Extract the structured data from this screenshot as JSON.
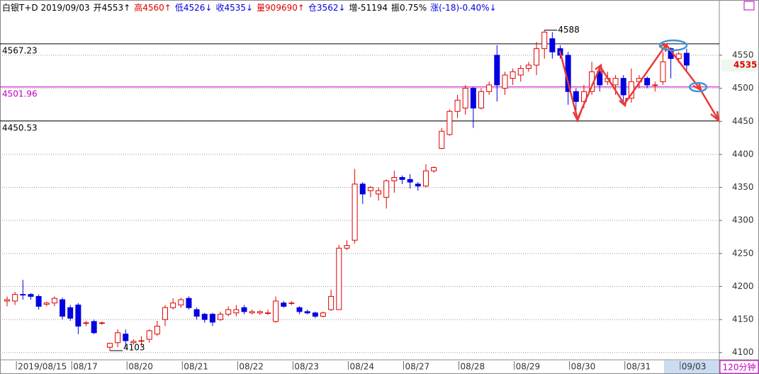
{
  "chart_data": {
    "type": "candlestick",
    "header": [
      {
        "text": "白银T+D 2019/09/03",
        "color": "#000000"
      },
      {
        "text": "开4553↑",
        "color": "#000000"
      },
      {
        "text": "高4560↑",
        "color": "#e00000"
      },
      {
        "text": "低4526↓",
        "color": "#0000e0"
      },
      {
        "text": "收4535↓",
        "color": "#0000e0"
      },
      {
        "text": "量909690↑",
        "color": "#e00000"
      },
      {
        "text": "仓3562↓",
        "color": "#0000e0"
      },
      {
        "text": "增-51194",
        "color": "#000000"
      },
      {
        "text": "振0.75%",
        "color": "#000000"
      },
      {
        "text": "涨(-18)-0.40%↓",
        "color": "#0000e0"
      }
    ],
    "period": "120分钟",
    "categories": [
      null,
      "2019/08/15",
      null,
      null,
      null,
      null,
      null,
      null,
      "08/17",
      null,
      null,
      null,
      null,
      null,
      null,
      "08/20",
      null,
      null,
      null,
      null,
      null,
      null,
      "08/21",
      null,
      null,
      null,
      null,
      null,
      null,
      "08/22",
      null,
      null,
      null,
      null,
      null,
      null,
      "08/23",
      null,
      null,
      null,
      null,
      null,
      null,
      "08/24",
      null,
      null,
      null,
      null,
      null,
      null,
      "08/27",
      null,
      null,
      null,
      null,
      null,
      null,
      "08/28",
      null,
      null,
      null,
      null,
      null,
      null,
      "08/29",
      null,
      null,
      null,
      null,
      null,
      null,
      "08/30",
      null,
      null,
      null,
      null,
      null,
      null,
      "08/31",
      null,
      null,
      null,
      null,
      null,
      null,
      "09/03",
      null
    ],
    "open": [
      4178,
      4178,
      4188,
      4188,
      4185,
      4173,
      4175,
      4180,
      4168,
      4172,
      4145,
      4147,
      4145,
      4108,
      4115,
      4128,
      4115,
      4118,
      4120,
      4128,
      4150,
      4168,
      4172,
      4182,
      4165,
      4158,
      4158,
      4150,
      4158,
      4160,
      4168,
      4160,
      4160,
      4160,
      4147,
      4175,
      4175,
      4168,
      4162,
      4160,
      4155,
      4165,
      4165,
      4258,
      4270,
      4355,
      4345,
      4340,
      4335,
      4360,
      4365,
      4362,
      4355,
      4352,
      4375,
      4409,
      4430,
      4465,
      4470,
      4500,
      4470,
      4495,
      4550,
      4500,
      4515,
      4520,
      4530,
      4535,
      4560,
      4575,
      4560,
      4550,
      4495,
      4480,
      4495,
      4525,
      4510,
      4505,
      4515,
      4485,
      4510,
      4515,
      4505,
      4510,
      4560,
      4545,
      4553
    ],
    "high": [
      4185,
      4192,
      4210,
      4190,
      4188,
      4177,
      4185,
      4183,
      4172,
      4175,
      4148,
      4150,
      4147,
      4115,
      4135,
      4135,
      4120,
      4125,
      4135,
      4148,
      4172,
      4182,
      4183,
      4185,
      4168,
      4160,
      4160,
      4162,
      4170,
      4172,
      4172,
      4165,
      4164,
      4165,
      4185,
      4178,
      4178,
      4170,
      4165,
      4162,
      4162,
      4195,
      4263,
      4270,
      4378,
      4358,
      4352,
      4350,
      4362,
      4375,
      4368,
      4370,
      4358,
      4385,
      4382,
      4440,
      4468,
      4490,
      4505,
      4502,
      4500,
      4510,
      4565,
      4525,
      4530,
      4535,
      4540,
      4570,
      4588,
      4585,
      4565,
      4555,
      4500,
      4505,
      4540,
      4535,
      4525,
      4520,
      4520,
      4530,
      4520,
      4518,
      4510,
      4555,
      4562,
      4555,
      4560
    ],
    "low": [
      4170,
      4172,
      4180,
      4180,
      4165,
      4170,
      4170,
      4150,
      4148,
      4128,
      4140,
      4128,
      4142,
      4103,
      4108,
      4108,
      4112,
      4110,
      4115,
      4125,
      4140,
      4165,
      4168,
      4165,
      4150,
      4145,
      4140,
      4148,
      4155,
      4155,
      4158,
      4158,
      4157,
      4157,
      4145,
      4168,
      4172,
      4158,
      4158,
      4152,
      4153,
      4163,
      4165,
      4255,
      4265,
      4325,
      4335,
      4330,
      4318,
      4342,
      4355,
      4348,
      4345,
      4350,
      4372,
      4408,
      4428,
      4455,
      4460,
      4440,
      4468,
      4490,
      4480,
      4490,
      4505,
      4510,
      4525,
      4520,
      4545,
      4545,
      4545,
      4475,
      4455,
      4470,
      4490,
      4495,
      4505,
      4490,
      4480,
      4478,
      4500,
      4500,
      4495,
      4505,
      4515,
      4538,
      4526
    ],
    "close": [
      4180,
      4188,
      4187,
      4185,
      4170,
      4175,
      4182,
      4155,
      4152,
      4140,
      4145,
      4130,
      4145,
      4114,
      4130,
      4118,
      4117,
      4118,
      4133,
      4140,
      4168,
      4175,
      4180,
      4168,
      4155,
      4150,
      4146,
      4158,
      4165,
      4165,
      4162,
      4162,
      4162,
      4160,
      4178,
      4170,
      4175,
      4162,
      4160,
      4155,
      4160,
      4185,
      4258,
      4262,
      4355,
      4340,
      4350,
      4345,
      4360,
      4365,
      4362,
      4358,
      4352,
      4375,
      4380,
      4435,
      4465,
      4482,
      4500,
      4470,
      4495,
      4505,
      4505,
      4520,
      4525,
      4530,
      4535,
      4560,
      4585,
      4555,
      4550,
      4495,
      4480,
      4495,
      4525,
      4505,
      4515,
      4515,
      4490,
      4510,
      4515,
      4505,
      4505,
      4540,
      4545,
      4552,
      4535
    ],
    "up_color": "#e00000",
    "down_color": "#0000e0",
    "ylim": [
      4089,
      4610
    ],
    "yticks": [
      4100,
      4150,
      4200,
      4250,
      4300,
      4350,
      4400,
      4450,
      4500,
      4550
    ],
    "grid": true,
    "hlines": [
      {
        "value": 4567.23,
        "color": "#000000"
      },
      {
        "value": 4501.96,
        "color": "#c000c0"
      },
      {
        "value": 4450.53,
        "color": "#000000"
      }
    ],
    "high_label": 4588,
    "low_label": 4103,
    "last_price": 4535,
    "last_price_color": "#e00000"
  }
}
